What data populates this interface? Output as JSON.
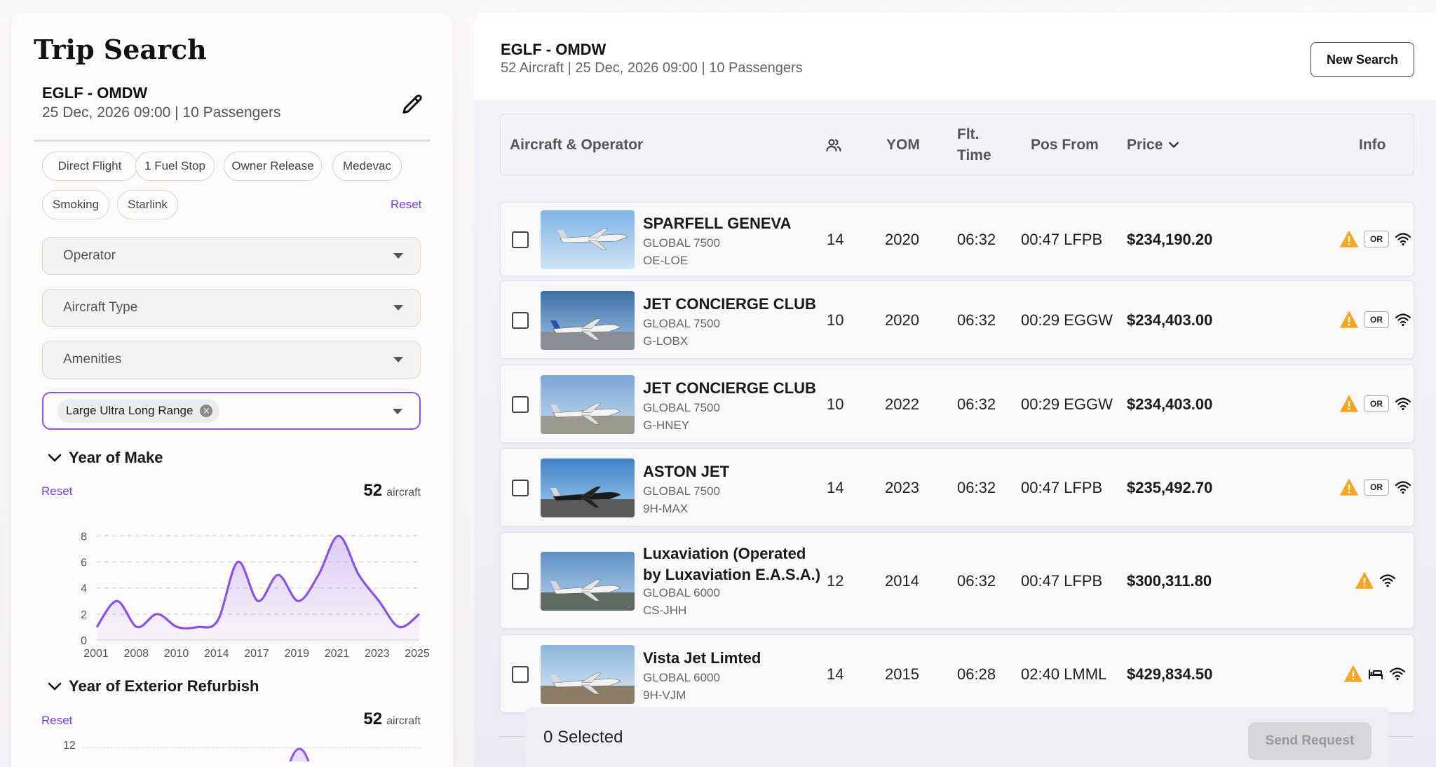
{
  "filter_panel": {
    "title": "Trip Search",
    "route": "EGLF - OMDW",
    "details": "25 Dec, 2026 09:00 | 10 Passengers",
    "chips": [
      "Direct Flight",
      "1 Fuel Stop",
      "Owner Release",
      "Medevac",
      "Smoking",
      "Starlink"
    ],
    "chips_reset": "Reset",
    "dropdowns": {
      "operator": "Operator",
      "aircraft_type": "Aircraft Type",
      "amenities": "Amenities"
    },
    "size_tag": "Large Ultra Long Range",
    "year_of_make": {
      "title": "Year of Make",
      "reset": "Reset",
      "count": "52",
      "count_unit": "aircraft"
    },
    "year_of_refurbish": {
      "title": "Year of Exterior Refurbish",
      "reset": "Reset",
      "count": "52",
      "count_unit": "aircraft",
      "first_y_tick": "12"
    }
  },
  "chart_data": {
    "type": "area",
    "x_ticks": [
      "2001",
      "2008",
      "2010",
      "2014",
      "2017",
      "2019",
      "2021",
      "2023",
      "2025"
    ],
    "y_ticks": [
      0,
      2,
      4,
      6,
      8
    ],
    "ylim": [
      0,
      8.5
    ],
    "values": [
      1,
      3,
      1,
      2,
      1,
      1,
      1.5,
      6,
      3,
      5,
      3,
      5,
      8,
      5,
      3,
      1,
      2
    ],
    "accent": "#8b52e8",
    "grid": true
  },
  "results": {
    "route": "EGLF - OMDW",
    "details": "52 Aircraft | 25 Dec, 2026 09:00 | 10 Passengers",
    "new_search": "New Search",
    "columns": {
      "aircraft": "Aircraft & Operator",
      "yom": "YOM",
      "flt_line1": "Flt.",
      "flt_line2": "Time",
      "pos": "Pos From",
      "price": "Price",
      "info": "Info"
    },
    "rows": [
      {
        "operator": "SPARFELL GENEVA",
        "operator_line2": "",
        "model": "GLOBAL 7500",
        "reg": "OE-LOE",
        "pax": "14",
        "yom": "2020",
        "flt": "06:32",
        "pos": "00:47 LFPB",
        "price": "$234,190.20",
        "or_badge": "OR",
        "info_icons": [
          "warning-icon",
          "wifi-icon"
        ]
      },
      {
        "operator": "JET CONCIERGE CLUB",
        "operator_line2": "",
        "model": "GLOBAL 7500",
        "reg": "G-LOBX",
        "pax": "10",
        "yom": "2020",
        "flt": "06:32",
        "pos": "00:29 EGGW",
        "price": "$234,403.00",
        "or_badge": "OR",
        "info_icons": [
          "warning-icon",
          "wifi-icon"
        ]
      },
      {
        "operator": "JET CONCIERGE CLUB",
        "operator_line2": "",
        "model": "GLOBAL 7500",
        "reg": "G-HNEY",
        "pax": "10",
        "yom": "2022",
        "flt": "06:32",
        "pos": "00:29 EGGW",
        "price": "$234,403.00",
        "or_badge": "OR",
        "info_icons": [
          "warning-icon",
          "wifi-icon"
        ]
      },
      {
        "operator": "ASTON JET",
        "operator_line2": "",
        "model": "GLOBAL 7500",
        "reg": "9H-MAX",
        "pax": "14",
        "yom": "2023",
        "flt": "06:32",
        "pos": "00:47 LFPB",
        "price": "$235,492.70",
        "or_badge": "OR",
        "info_icons": [
          "warning-icon",
          "wifi-icon"
        ]
      },
      {
        "operator": "Luxaviation (Operated",
        "operator_line2": "by Luxaviation E.A.S.A.)",
        "model": "GLOBAL 6000",
        "reg": "CS-JHH",
        "pax": "12",
        "yom": "2014",
        "flt": "06:32",
        "pos": "00:47 LFPB",
        "price": "$300,311.80",
        "or_badge": "",
        "info_icons": [
          "warning-icon",
          "wifi-icon"
        ]
      },
      {
        "operator": "Vista Jet Limted",
        "operator_line2": "",
        "model": "GLOBAL 6000",
        "reg": "9H-VJM",
        "pax": "14",
        "yom": "2015",
        "flt": "06:28",
        "pos": "02:40 LMML",
        "price": "$429,834.50",
        "or_badge": "",
        "info_icons": [
          "warning-icon",
          "bed-icon",
          "wifi-icon"
        ]
      }
    ],
    "selected_text": "0 Selected",
    "send_request": "Send Request"
  }
}
